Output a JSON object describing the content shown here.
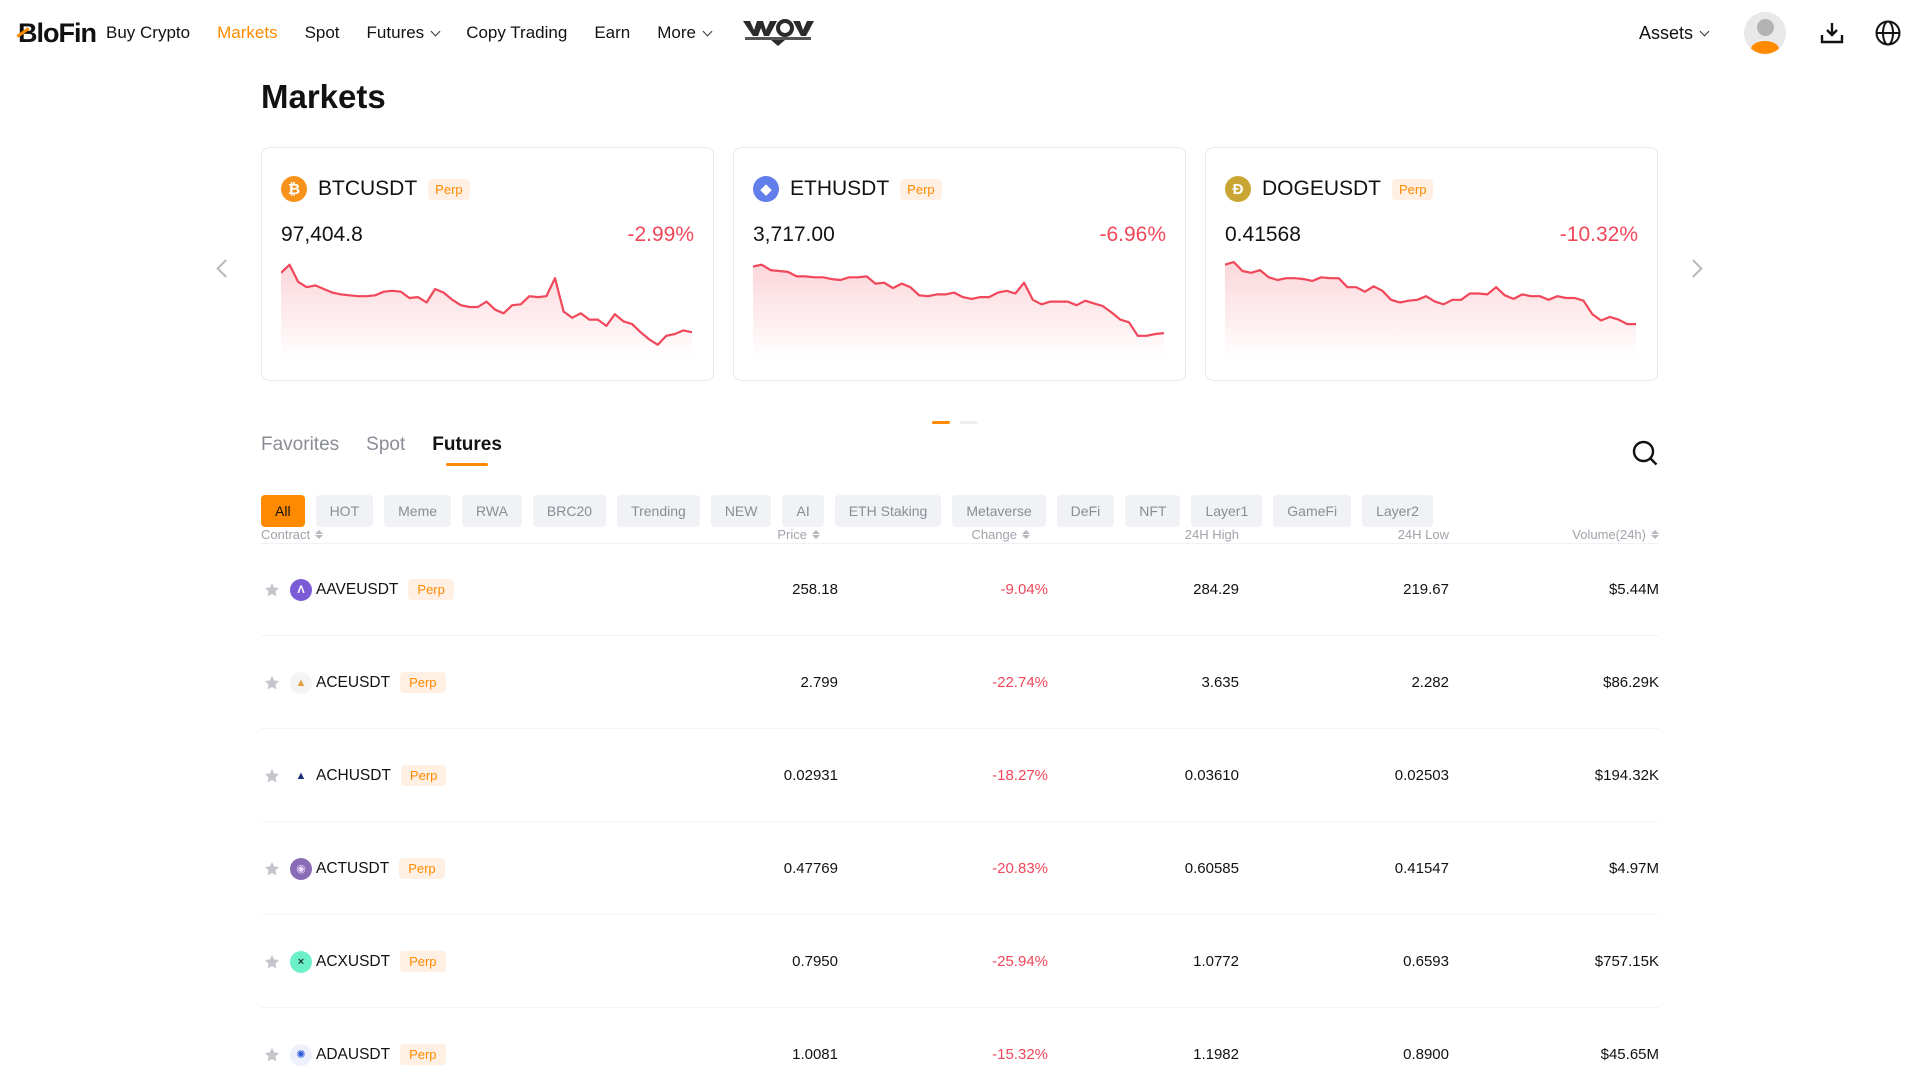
{
  "nav": {
    "logo": "BloFin",
    "items": [
      {
        "label": "Buy Crypto",
        "active": false,
        "dropdown": false
      },
      {
        "label": "Markets",
        "active": true,
        "dropdown": false
      },
      {
        "label": "Spot",
        "active": false,
        "dropdown": false
      },
      {
        "label": "Futures",
        "active": false,
        "dropdown": true
      },
      {
        "label": "Copy Trading",
        "active": false,
        "dropdown": false
      },
      {
        "label": "Earn",
        "active": false,
        "dropdown": false
      },
      {
        "label": "More",
        "active": false,
        "dropdown": true
      }
    ],
    "promo_logo": "WAR OF WHALES",
    "assets_label": "Assets",
    "icons": [
      "avatar-icon",
      "download-icon",
      "globe-icon"
    ]
  },
  "page": {
    "title": "Markets"
  },
  "colors": {
    "accent": "#ff8a00",
    "negative": "#f0475a",
    "chip_bg": "#f1f2f5",
    "perp_bg": "#fff0e3"
  },
  "cards": [
    {
      "symbol": "BTCUSDT",
      "tag": "Perp",
      "price": "97,404.8",
      "change": "-2.99%",
      "coin_color": "#f7931a",
      "coin_glyph": "₿",
      "spark": [
        0.88,
        0.97,
        0.78,
        0.72,
        0.74,
        0.7,
        0.66,
        0.64,
        0.63,
        0.62,
        0.62,
        0.63,
        0.67,
        0.68,
        0.67,
        0.6,
        0.61,
        0.55,
        0.7,
        0.66,
        0.58,
        0.52,
        0.5,
        0.5,
        0.56,
        0.47,
        0.43,
        0.52,
        0.53,
        0.62,
        0.61,
        0.62,
        0.82,
        0.45,
        0.38,
        0.43,
        0.36,
        0.36,
        0.29,
        0.42,
        0.34,
        0.31,
        0.22,
        0.14,
        0.08,
        0.18,
        0.2,
        0.24,
        0.22
      ]
    },
    {
      "symbol": "ETHUSDT",
      "tag": "Perp",
      "price": "3,717.00",
      "change": "-6.96%",
      "coin_color": "#627eea",
      "coin_glyph": "◆",
      "spark": [
        0.95,
        0.97,
        0.91,
        0.9,
        0.89,
        0.84,
        0.84,
        0.83,
        0.83,
        0.81,
        0.8,
        0.83,
        0.83,
        0.84,
        0.76,
        0.77,
        0.71,
        0.76,
        0.72,
        0.63,
        0.62,
        0.64,
        0.64,
        0.66,
        0.61,
        0.59,
        0.61,
        0.61,
        0.66,
        0.68,
        0.65,
        0.77,
        0.58,
        0.53,
        0.56,
        0.56,
        0.56,
        0.52,
        0.57,
        0.54,
        0.51,
        0.44,
        0.36,
        0.33,
        0.18,
        0.18,
        0.2,
        0.21
      ]
    },
    {
      "symbol": "DOGEUSDT",
      "tag": "Perp",
      "price": "0.41568",
      "change": "-10.32%",
      "coin_color": "#c9a633",
      "coin_glyph": "Ð",
      "spark": [
        0.97,
        1.0,
        0.9,
        0.88,
        0.91,
        0.83,
        0.8,
        0.82,
        0.82,
        0.81,
        0.79,
        0.83,
        0.82,
        0.82,
        0.72,
        0.72,
        0.67,
        0.73,
        0.68,
        0.58,
        0.55,
        0.57,
        0.58,
        0.62,
        0.56,
        0.53,
        0.58,
        0.58,
        0.65,
        0.65,
        0.64,
        0.72,
        0.63,
        0.59,
        0.64,
        0.62,
        0.62,
        0.58,
        0.62,
        0.6,
        0.6,
        0.57,
        0.42,
        0.35,
        0.39,
        0.36,
        0.31,
        0.31
      ]
    }
  ],
  "carousel": {
    "pages": 2,
    "active_page": 0
  },
  "tabs": [
    {
      "label": "Favorites",
      "active": false
    },
    {
      "label": "Spot",
      "active": false
    },
    {
      "label": "Futures",
      "active": true
    }
  ],
  "chips": [
    {
      "label": "All",
      "active": true
    },
    {
      "label": "HOT"
    },
    {
      "label": "Meme"
    },
    {
      "label": "RWA"
    },
    {
      "label": "BRC20"
    },
    {
      "label": "Trending"
    },
    {
      "label": "NEW"
    },
    {
      "label": "AI"
    },
    {
      "label": "ETH Staking"
    },
    {
      "label": "Metaverse"
    },
    {
      "label": "DeFi"
    },
    {
      "label": "NFT"
    },
    {
      "label": "Layer1"
    },
    {
      "label": "GameFi"
    },
    {
      "label": "Layer2"
    }
  ],
  "table": {
    "columns": [
      {
        "label": "Contract",
        "sortable": true
      },
      {
        "label": "Price",
        "sortable": true
      },
      {
        "label": "Change",
        "sortable": true
      },
      {
        "label": "24H High",
        "sortable": false
      },
      {
        "label": "24H Low",
        "sortable": false
      },
      {
        "label": "Volume(24h)",
        "sortable": true
      }
    ],
    "rows": [
      {
        "symbol": "AAVEUSDT",
        "tag": "Perp",
        "price": "258.18",
        "change": "-9.04%",
        "high": "284.29",
        "low": "219.67",
        "volume": "$5.44M",
        "coin_color": "#7b5bd6",
        "coin_glyph": "Λ",
        "coin_text": "#ffffff"
      },
      {
        "symbol": "ACEUSDT",
        "tag": "Perp",
        "price": "2.799",
        "change": "-22.74%",
        "high": "3.635",
        "low": "2.282",
        "volume": "$86.29K",
        "coin_color": "#f4f4f4",
        "coin_glyph": "▲",
        "coin_text": "#e0a040"
      },
      {
        "symbol": "ACHUSDT",
        "tag": "Perp",
        "price": "0.02931",
        "change": "-18.27%",
        "high": "0.03610",
        "low": "0.02503",
        "volume": "$194.32K",
        "coin_color": "#ffffff",
        "coin_glyph": "▲",
        "coin_text": "#1b2a7a"
      },
      {
        "symbol": "ACTUSDT",
        "tag": "Perp",
        "price": "0.47769",
        "change": "-20.83%",
        "high": "0.60585",
        "low": "0.41547",
        "volume": "$4.97M",
        "coin_color": "#8a6bb5",
        "coin_glyph": "◉",
        "coin_text": "#e8d9ff"
      },
      {
        "symbol": "ACXUSDT",
        "tag": "Perp",
        "price": "0.7950",
        "change": "-25.94%",
        "high": "1.0772",
        "low": "0.6593",
        "volume": "$757.15K",
        "coin_color": "#6cf0c8",
        "coin_glyph": "×",
        "coin_text": "#1e3a34"
      },
      {
        "symbol": "ADAUSDT",
        "tag": "Perp",
        "price": "1.0081",
        "change": "-15.32%",
        "high": "1.1982",
        "low": "0.8900",
        "volume": "$45.65M",
        "coin_color": "#eef1fb",
        "coin_glyph": "✺",
        "coin_text": "#2a5ad8"
      }
    ]
  }
}
